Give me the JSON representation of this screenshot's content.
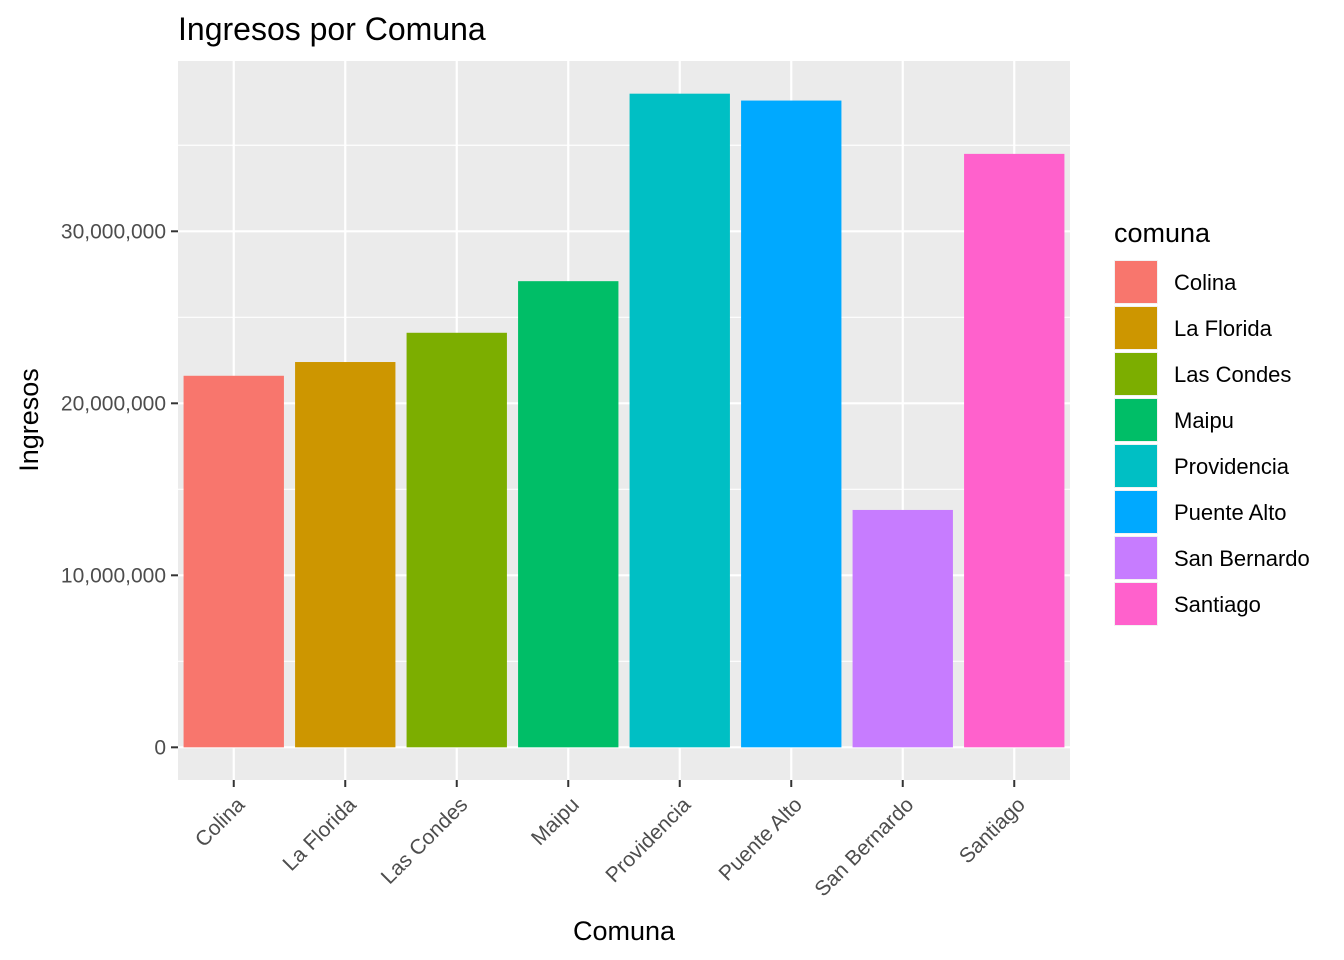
{
  "chart_data": {
    "type": "bar",
    "title": "Ingresos por Comuna",
    "xlabel": "Comuna",
    "ylabel": "Ingresos",
    "categories": [
      "Colina",
      "La Florida",
      "Las Condes",
      "Maipu",
      "Providencia",
      "Puente Alto",
      "San Bernardo",
      "Santiago"
    ],
    "values": [
      21600000,
      22400000,
      24100000,
      27100000,
      38000000,
      37600000,
      13800000,
      34500000
    ],
    "colors": [
      "#F8766D",
      "#CD9600",
      "#7CAE00",
      "#00BE67",
      "#00BFC4",
      "#00A9FF",
      "#C77CFF",
      "#FF61CC"
    ],
    "ylim": [
      -1900000,
      39900000
    ],
    "yticks": [
      0,
      10000000,
      20000000,
      30000000
    ],
    "ytick_labels": [
      "0",
      "10,000,000",
      "20,000,000",
      "30,000,000"
    ],
    "grid": true,
    "panel_background": "#EBEBEB",
    "legend": {
      "title": "comuna",
      "position": "right"
    }
  }
}
